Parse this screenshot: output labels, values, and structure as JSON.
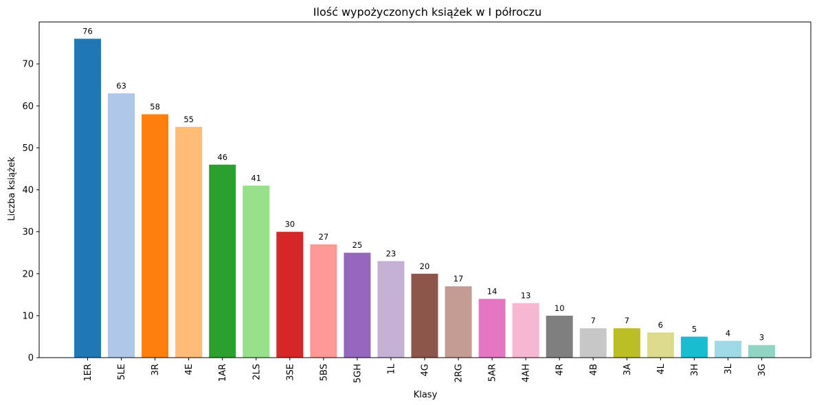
{
  "chart_data": {
    "type": "bar",
    "title": "Ilość wypożyczonych książek w I półroczu",
    "xlabel": "Klasy",
    "ylabel": "Liczba książek",
    "categories": [
      "1ER",
      "5LE",
      "3R",
      "4E",
      "1AR",
      "2LS",
      "3SE",
      "5BS",
      "5GH",
      "1L",
      "4G",
      "2RG",
      "5AR",
      "4AH",
      "4R",
      "4B",
      "3A",
      "4L",
      "3H",
      "3L",
      "3G"
    ],
    "values": [
      76,
      63,
      58,
      55,
      46,
      41,
      30,
      27,
      25,
      23,
      20,
      17,
      14,
      13,
      10,
      7,
      7,
      6,
      5,
      4,
      3
    ],
    "colors": [
      "#1f77b4",
      "#aec7e8",
      "#ff7f0e",
      "#ffbb78",
      "#2ca02c",
      "#98df8a",
      "#d62728",
      "#ff9896",
      "#9467bd",
      "#c5b0d5",
      "#8c564b",
      "#c49c94",
      "#e377c2",
      "#f7b6d2",
      "#7f7f7f",
      "#c7c7c7",
      "#bcbd22",
      "#dbdb8d",
      "#17becf",
      "#9edae5",
      "#8fd4c4"
    ],
    "ylim": [
      0,
      80
    ],
    "yticks": [
      0,
      10,
      20,
      30,
      40,
      50,
      60,
      70
    ],
    "grid": false,
    "legend": "none"
  }
}
